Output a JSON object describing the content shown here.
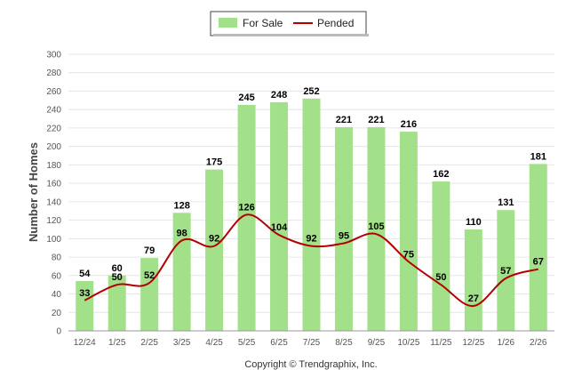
{
  "chart_data": {
    "type": "bar",
    "categories": [
      "12/24",
      "1/25",
      "2/25",
      "3/25",
      "4/25",
      "5/25",
      "6/25",
      "7/25",
      "8/25",
      "9/25",
      "10/25",
      "11/25",
      "12/25",
      "1/26",
      "2/26"
    ],
    "series": [
      {
        "name": "For Sale",
        "kind": "bar",
        "color": "#a3e08a",
        "values": [
          54,
          60,
          79,
          128,
          175,
          245,
          248,
          252,
          221,
          221,
          216,
          162,
          110,
          131,
          181
        ]
      },
      {
        "name": "Pended",
        "kind": "line",
        "color": "#b30000",
        "values": [
          33,
          50,
          52,
          98,
          92,
          126,
          104,
          92,
          95,
          105,
          75,
          50,
          27,
          57,
          67
        ]
      }
    ],
    "ylabel": "Number of Homes",
    "ylim": [
      0,
      300
    ],
    "yticks": [
      0,
      20,
      40,
      60,
      80,
      100,
      120,
      140,
      160,
      180,
      200,
      220,
      240,
      260,
      280,
      300
    ],
    "grid": true,
    "legend": "top-center"
  },
  "footer": {
    "copyright": "Copyright © Trendgraphix, Inc."
  }
}
